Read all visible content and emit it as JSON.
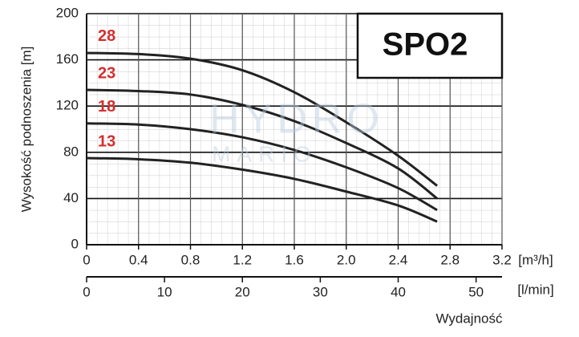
{
  "chart_data": {
    "type": "line",
    "title": "SPO2",
    "ylabel": "Wysokość podnoszenia [m]",
    "xlabel": "Wydajność",
    "xunit": "[m³/h]",
    "x2unit": "[l/min]",
    "watermark": [
      "HYDRO",
      "MARIO"
    ],
    "x": [
      0,
      0.4,
      0.8,
      1.2,
      1.6,
      2.0,
      2.4,
      2.7
    ],
    "series": [
      {
        "name": "28",
        "color": "#d32f2f",
        "values": [
          166,
          165,
          161,
          151,
          132,
          106,
          77,
          51
        ]
      },
      {
        "name": "23",
        "color": "#d32f2f",
        "values": [
          134,
          133,
          130,
          121,
          107,
          88,
          66,
          40
        ]
      },
      {
        "name": "18",
        "color": "#d32f2f",
        "values": [
          105,
          104,
          100,
          93,
          82,
          67,
          49,
          30
        ]
      },
      {
        "name": "13",
        "color": "#d32f2f",
        "values": [
          75,
          74,
          71,
          65,
          57,
          46,
          34,
          20
        ]
      }
    ],
    "line_color": "#222222",
    "xlim": [
      0,
      3.2
    ],
    "xticks": [
      0,
      0.4,
      0.8,
      1.2,
      1.6,
      {
        "value": 2,
        "label": "2.0"
      },
      2.4,
      2.8,
      3.2
    ],
    "x2lim": [
      0,
      53.33
    ],
    "x2ticks": [
      0,
      10,
      20,
      30,
      40,
      50
    ],
    "ylim": [
      0,
      200
    ],
    "yticks": [
      0,
      40,
      80,
      120,
      160,
      200
    ],
    "grid": true
  }
}
